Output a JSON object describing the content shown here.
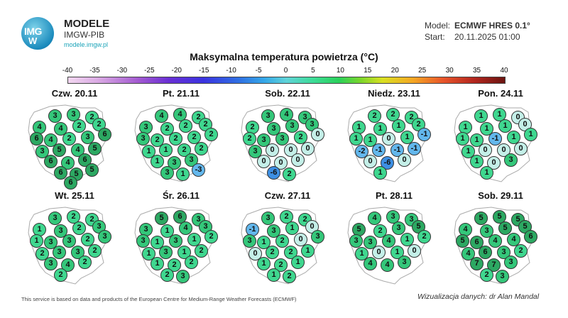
{
  "brand": {
    "logo_top": "IMG",
    "logo_bottom": "W",
    "name": "MODELE",
    "org": "IMGW-PIB",
    "url": "modele.imgw.pl"
  },
  "model_info": {
    "model_label": "Model:",
    "model_value": "ECMWF HRES 0.1°",
    "start_label": "Start:",
    "start_value": "20.11.2025 01:00"
  },
  "title": "Maksymalna temperatura powietrza (°C)",
  "colorbar_ticks": [
    "-40",
    "-35",
    "-30",
    "-25",
    "-20",
    "-15",
    "-10",
    "-5",
    "0",
    "5",
    "10",
    "15",
    "20",
    "25",
    "30",
    "35",
    "40"
  ],
  "colors": {
    "c0": "#2fd08a",
    "cminus": "#57b0e8",
    "czero": "#bfeee6",
    "cpos_low": "#39d38e",
    "cpos_high": "#2fb86a"
  },
  "map_data": {
    "type": "choropleth-points",
    "region": "Poland",
    "panels": [
      {
        "label": "Czw. 20.11",
        "values": [
          3,
          3,
          2,
          4,
          4,
          2,
          2,
          6,
          4,
          2,
          3,
          6,
          3,
          5,
          4,
          5,
          6,
          4,
          6,
          6,
          5,
          5,
          6
        ]
      },
      {
        "label": "Pt. 21.11",
        "values": [
          4,
          4,
          2,
          3,
          2,
          2,
          2,
          3,
          2,
          2,
          2,
          2,
          1,
          1,
          2,
          2,
          1,
          3,
          3,
          3,
          1,
          -3
        ]
      },
      {
        "label": "Sob. 22.11",
        "values": [
          3,
          4,
          3,
          2,
          3,
          3,
          3,
          2,
          3,
          3,
          2,
          0,
          3,
          0,
          0,
          0,
          0,
          0,
          0,
          -6,
          2
        ]
      },
      {
        "label": "Niedz. 23.11",
        "values": [
          2,
          2,
          2,
          1,
          1,
          1,
          2,
          1,
          1,
          0,
          1,
          -1,
          -2,
          -1,
          -1,
          -1,
          0,
          -6,
          0,
          1
        ]
      },
      {
        "label": "Pon. 24.11",
        "values": [
          1,
          1,
          0,
          1,
          1,
          1,
          0,
          1,
          1,
          -1,
          1,
          1,
          1,
          0,
          0,
          0,
          1,
          0,
          3,
          1
        ]
      },
      {
        "label": "Wt. 25.11",
        "values": [
          3,
          2,
          2,
          1,
          3,
          2,
          3,
          1,
          3,
          3,
          2,
          3,
          2,
          3,
          3,
          2,
          3,
          4,
          2,
          2
        ]
      },
      {
        "label": "Śr. 26.11",
        "values": [
          5,
          6,
          3,
          3,
          1,
          4,
          3,
          3,
          1,
          3,
          1,
          2,
          1,
          3,
          1,
          2,
          1,
          2,
          2,
          2,
          3
        ]
      },
      {
        "label": "Czw. 27.11",
        "values": [
          3,
          2,
          2,
          -1,
          3,
          1,
          0,
          3,
          1,
          2,
          0,
          3,
          0,
          2,
          2,
          1,
          1,
          2,
          1,
          1,
          2
        ]
      },
      {
        "label": "Pt. 28.11",
        "values": [
          4,
          3,
          3,
          5,
          2,
          3,
          5,
          3,
          3,
          4,
          1,
          2,
          1,
          0,
          1,
          0,
          4,
          4,
          3
        ]
      },
      {
        "label": "Sob. 29.11",
        "values": [
          5,
          5,
          5,
          4,
          3,
          5,
          5,
          5,
          6,
          4,
          4,
          6,
          4,
          6,
          3,
          2,
          7,
          7,
          3,
          2,
          3
        ]
      }
    ]
  },
  "footer": "This service is based on data and products of the European Centre for Medium-Range Weather Forecasts (ECMWF)",
  "credit": "Wizualizacja danych: dr Alan Mandal"
}
